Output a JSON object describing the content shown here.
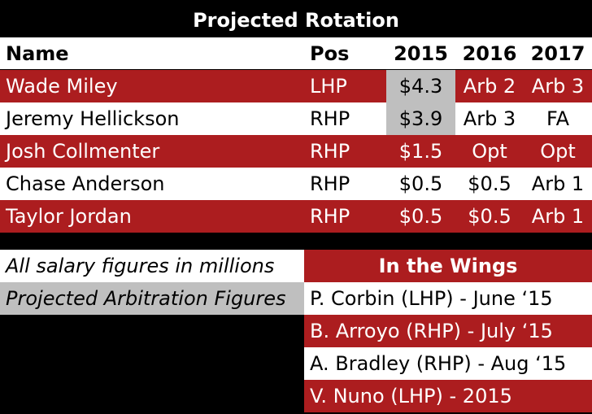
{
  "title": "Projected Rotation",
  "headers": [
    "Name",
    "Pos",
    "2015",
    "2016",
    "2017"
  ],
  "rows": [
    {
      "name": "Wade Miley",
      "pos": "LHP",
      "y2015": "$4.3",
      "y2016": "Arb 2",
      "y2017": "Arb 3",
      "style": "red",
      "arb2015": true
    },
    {
      "name": "Jeremy Hellickson",
      "pos": "RHP",
      "y2015": "$3.9",
      "y2016": "Arb 3",
      "y2017": "FA",
      "style": "white",
      "arb2015": true
    },
    {
      "name": "Josh Collmenter",
      "pos": "RHP",
      "y2015": "$1.5",
      "y2016": "Opt",
      "y2017": "Opt",
      "style": "red",
      "arb2015": false
    },
    {
      "name": "Chase Anderson",
      "pos": "RHP",
      "y2015": "$0.5",
      "y2016": "$0.5",
      "y2017": "Arb 1",
      "style": "white",
      "arb2015": false
    },
    {
      "name": "Taylor Jordan",
      "pos": "RHP",
      "y2015": "$0.5",
      "y2016": "$0.5",
      "y2017": "Arb 1",
      "style": "red",
      "arb2015": false
    }
  ],
  "notes": {
    "salary": "All salary figures in millions",
    "arbitration": "Projected Arbitration Figures"
  },
  "wings": {
    "title": "In the Wings",
    "items": [
      {
        "text": "P. Corbin (LHP) - June ‘15",
        "style": "white"
      },
      {
        "text": "B. Arroyo (RHP) - July ‘15",
        "style": "red"
      },
      {
        "text": "A. Bradley (RHP) - Aug ‘15",
        "style": "white"
      },
      {
        "text": "V. Nuno (LHP) - 2015",
        "style": "red"
      }
    ]
  },
  "colors": {
    "accent": "#ac1d1f",
    "arbitration_highlight": "#bfbfbf",
    "background": "#000000"
  }
}
